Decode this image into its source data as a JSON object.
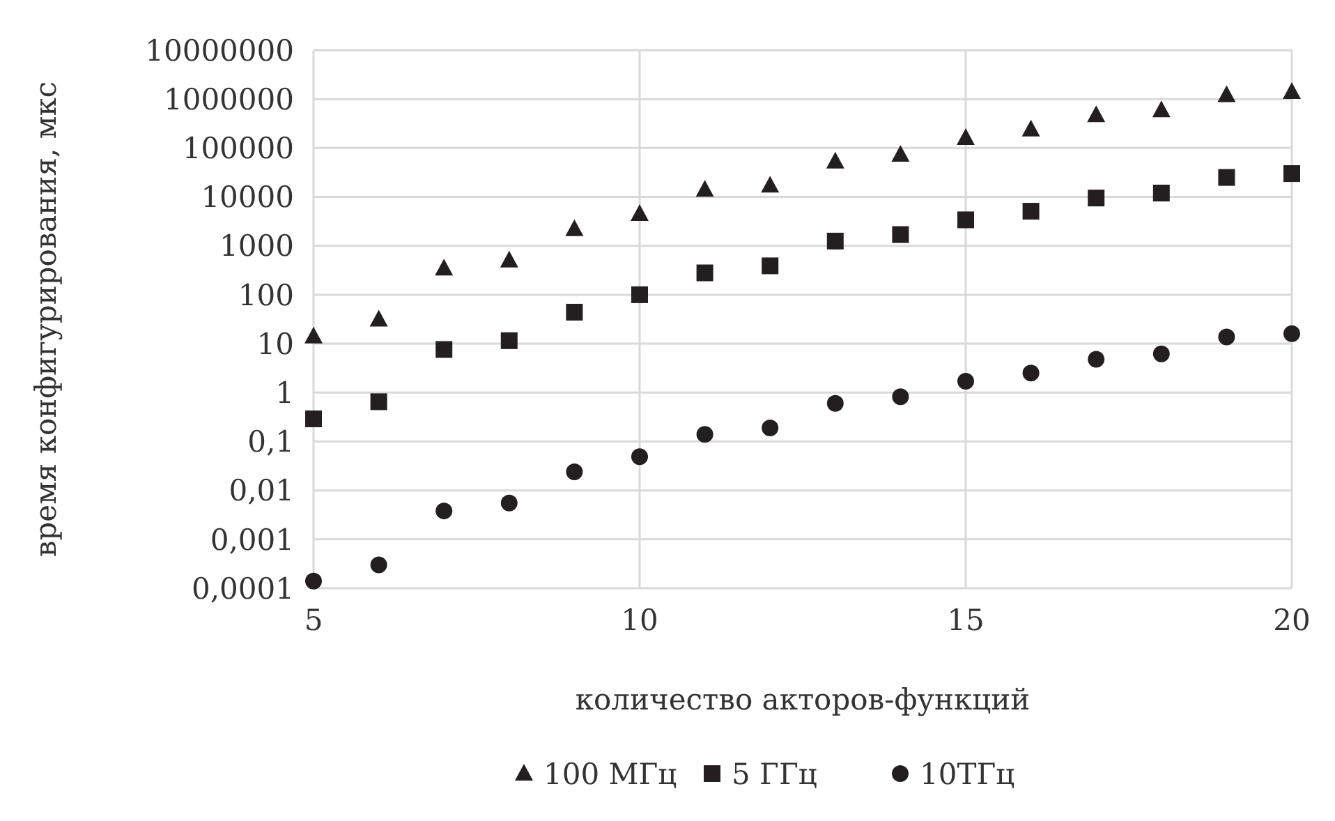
{
  "chart_data": {
    "type": "scatter",
    "xlabel": "количество акторов-функций",
    "ylabel": "время конфигурирования, мкс",
    "x": [
      5,
      6,
      7,
      8,
      9,
      10,
      11,
      12,
      13,
      14,
      15,
      16,
      17,
      18,
      19,
      20
    ],
    "series": [
      {
        "name": "100 МГц",
        "color": "#231f20",
        "marker": "triangle",
        "values": [
          14,
          31,
          345,
          500,
          2200,
          4500,
          14000,
          17000,
          53000,
          73000,
          160000,
          240000,
          470000,
          590000,
          1200000,
          1400000
        ]
      },
      {
        "name": "5 ГГц",
        "color": "#231f20",
        "marker": "square",
        "values": [
          0.29,
          0.65,
          7.6,
          11.5,
          44,
          100,
          280,
          390,
          1250,
          1700,
          3400,
          5100,
          9500,
          12000,
          25000,
          30000
        ]
      },
      {
        "name": "10ТГц",
        "color": "#231f20",
        "marker": "circle",
        "values": [
          0.00014,
          0.0003,
          0.0038,
          0.0055,
          0.024,
          0.049,
          0.14,
          0.19,
          0.6,
          0.82,
          1.7,
          2.5,
          4.8,
          6.2,
          13.7,
          16
        ]
      }
    ],
    "log": "y",
    "xlim": [
      5,
      20
    ],
    "xticks": [
      5,
      10,
      15,
      20
    ],
    "ylim": [
      0.0001,
      10000000
    ],
    "yticks": [
      {
        "value": 0.0001,
        "label": "0,0001"
      },
      {
        "value": 0.001,
        "label": "0,001"
      },
      {
        "value": 0.01,
        "label": "0,01"
      },
      {
        "value": 0.1,
        "label": "0,1"
      },
      1,
      10,
      100,
      1000,
      10000,
      100000,
      1000000,
      10000000
    ],
    "grid": true,
    "legend": "bottom"
  }
}
